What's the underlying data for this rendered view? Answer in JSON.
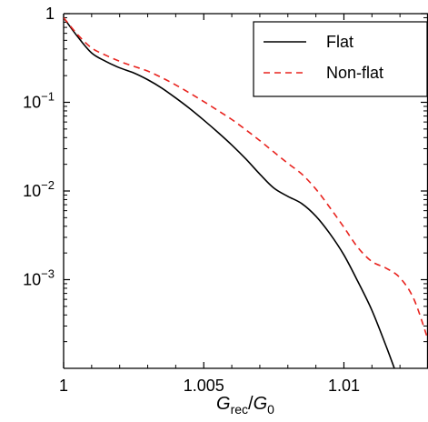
{
  "chart_data": {
    "type": "line",
    "title": "",
    "xlabel": {
      "main": "G",
      "num_sub": "rec",
      "slash": "/",
      "den_main": "G",
      "den_sub": "0"
    },
    "ylabel": "",
    "xlim": [
      1.0,
      1.013
    ],
    "ylim": [
      0.0001,
      1
    ],
    "y_scale": "log",
    "grid": false,
    "legend_position": "top-right",
    "x_ticks": [
      {
        "value": 1.0,
        "label": "1"
      },
      {
        "value": 1.005,
        "label": "1.005"
      },
      {
        "value": 1.01,
        "label": "1.01"
      }
    ],
    "y_ticks": [
      {
        "value": 1,
        "label": "1",
        "exp": ""
      },
      {
        "value": 0.1,
        "label": "10",
        "exp": "−1"
      },
      {
        "value": 0.01,
        "label": "10",
        "exp": "−2"
      },
      {
        "value": 0.001,
        "label": "10",
        "exp": "−3"
      }
    ],
    "series": [
      {
        "name": "Flat",
        "color": "#000000",
        "dash": "solid",
        "points": [
          [
            1.0,
            0.9
          ],
          [
            1.0005,
            0.55
          ],
          [
            1.001,
            0.36
          ],
          [
            1.0015,
            0.29
          ],
          [
            1.002,
            0.245
          ],
          [
            1.0025,
            0.215
          ],
          [
            1.003,
            0.18
          ],
          [
            1.0035,
            0.145
          ],
          [
            1.004,
            0.112
          ],
          [
            1.0045,
            0.085
          ],
          [
            1.005,
            0.063
          ],
          [
            1.0055,
            0.046
          ],
          [
            1.006,
            0.033
          ],
          [
            1.0065,
            0.023
          ],
          [
            1.007,
            0.0155
          ],
          [
            1.0075,
            0.0108
          ],
          [
            1.008,
            0.0087
          ],
          [
            1.0085,
            0.0072
          ],
          [
            1.009,
            0.0052
          ],
          [
            1.0095,
            0.0033
          ],
          [
            1.01,
            0.0019
          ],
          [
            1.0105,
            0.00095
          ],
          [
            1.011,
            0.00045
          ],
          [
            1.0115,
            0.00018
          ],
          [
            1.0118,
            0.0001
          ]
        ]
      },
      {
        "name": "Non-flat",
        "color": "#e8231e",
        "dash": "dashed",
        "points": [
          [
            1.0,
            0.9
          ],
          [
            1.0005,
            0.58
          ],
          [
            1.001,
            0.41
          ],
          [
            1.0015,
            0.34
          ],
          [
            1.002,
            0.29
          ],
          [
            1.0025,
            0.255
          ],
          [
            1.003,
            0.225
          ],
          [
            1.0035,
            0.19
          ],
          [
            1.004,
            0.157
          ],
          [
            1.0045,
            0.127
          ],
          [
            1.005,
            0.102
          ],
          [
            1.0055,
            0.081
          ],
          [
            1.006,
            0.064
          ],
          [
            1.0065,
            0.049
          ],
          [
            1.007,
            0.037
          ],
          [
            1.0075,
            0.0275
          ],
          [
            1.008,
            0.0205
          ],
          [
            1.0085,
            0.0155
          ],
          [
            1.009,
            0.0105
          ],
          [
            1.0095,
            0.0065
          ],
          [
            1.01,
            0.0039
          ],
          [
            1.0105,
            0.0023
          ],
          [
            1.011,
            0.0016
          ],
          [
            1.0115,
            0.00135
          ],
          [
            1.012,
            0.00105
          ],
          [
            1.0125,
            0.0006
          ],
          [
            1.013,
            0.00021
          ]
        ]
      }
    ]
  }
}
